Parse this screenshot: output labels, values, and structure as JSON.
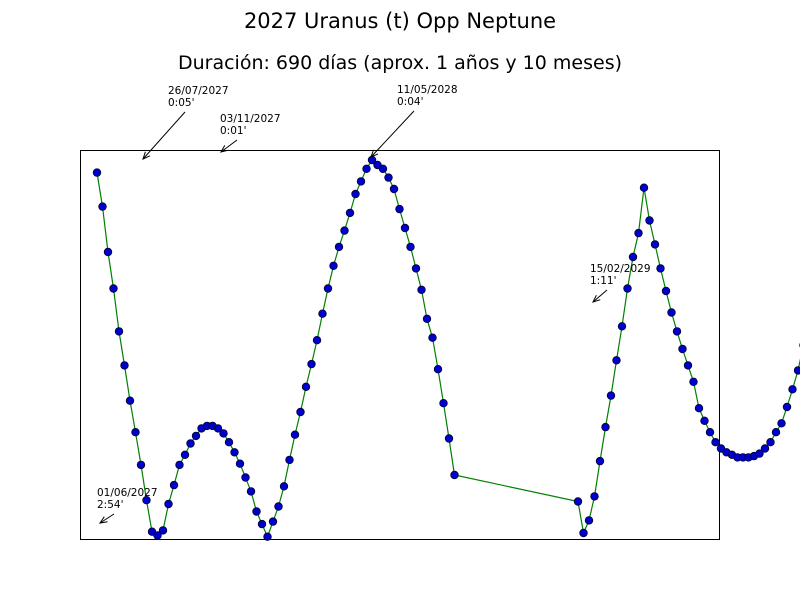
{
  "chart_data": {
    "type": "line",
    "title": "2027 Uranus (t) Opp Neptune",
    "subtitle": "Duración: 690 días (aprox. 1 años y 10 meses)",
    "xlabel": "",
    "ylabel": "",
    "grid": false,
    "line_color": "#008000",
    "marker_face_color": "#0000cc",
    "marker_edge_color": "#000033",
    "series": [
      {
        "x": [
          0,
          1,
          2,
          3,
          4,
          5,
          6,
          7,
          8,
          9,
          10,
          11,
          12,
          13,
          14,
          15,
          16,
          17,
          18,
          19,
          20,
          21,
          22,
          23,
          24,
          25,
          26,
          27,
          28,
          29,
          30,
          31,
          32,
          33,
          34,
          35,
          36,
          37,
          38,
          39,
          40,
          41,
          42,
          43,
          44,
          45,
          46,
          47,
          48,
          49,
          50,
          51,
          52,
          53,
          54,
          55,
          56,
          57,
          58,
          59,
          60,
          61,
          62,
          63,
          64,
          65,
          66,
          67,
          68,
          69,
          70,
          71,
          72,
          73,
          74,
          75,
          76,
          77,
          78,
          79,
          80,
          81,
          82,
          83,
          84,
          85,
          86,
          87,
          88,
          89,
          90,
          91,
          92,
          93,
          94,
          95,
          96,
          97,
          98,
          99,
          100,
          101,
          102,
          103,
          104,
          105,
          106,
          107,
          108
        ],
        "y": [
          2.9,
          2.63,
          2.27,
          1.98,
          1.64,
          1.37,
          1.09,
          0.84,
          0.58,
          0.3,
          0.05,
          0.02,
          0.06,
          0.27,
          0.42,
          0.58,
          0.66,
          0.75,
          0.81,
          0.87,
          0.89,
          0.89,
          0.87,
          0.83,
          0.76,
          0.68,
          0.59,
          0.48,
          0.37,
          0.21,
          0.11,
          0.01,
          0.13,
          0.25,
          0.41,
          0.62,
          0.82,
          1.0,
          1.2,
          1.38,
          1.57,
          1.78,
          1.98,
          2.16,
          2.31,
          2.44,
          2.58,
          2.73,
          2.83,
          2.93,
          3.0,
          2.96,
          2.93,
          2.86,
          2.77,
          2.61,
          2.46,
          2.31,
          2.14,
          1.97,
          1.74,
          1.59,
          1.34,
          1.07,
          0.79,
          0.5,
          0.29,
          0.04,
          0.14,
          0.33,
          0.61,
          0.88,
          1.13,
          1.41,
          1.68,
          1.98,
          2.23,
          2.42,
          2.78,
          2.52,
          2.33,
          2.14,
          1.96,
          1.79,
          1.64,
          1.5,
          1.37,
          1.24,
          1.03,
          0.93,
          0.84,
          0.76,
          0.71,
          0.68,
          0.66,
          0.64,
          0.64,
          0.64,
          0.65,
          0.67,
          0.71,
          0.76,
          0.84,
          0.91,
          1.04,
          1.18,
          1.33,
          1.53,
          1.76
        ],
        "_note": "y is orb in degrees"
      }
    ],
    "annotations": [
      {
        "date": "01/06/2027",
        "orb": "2:54'"
      },
      {
        "date": "26/07/2027",
        "orb": "0:05'"
      },
      {
        "date": "03/11/2027",
        "orb": "0:01'"
      },
      {
        "date": "11/05/2028",
        "orb": "0:04'"
      },
      {
        "date": "15/02/2029",
        "orb": "1:11'"
      }
    ]
  }
}
